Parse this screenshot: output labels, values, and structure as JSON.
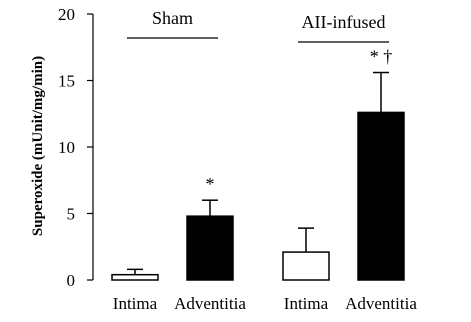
{
  "chart_data": {
    "type": "bar",
    "ylabel": "Superoxide (mUnit/mg/min)",
    "ylim": [
      0,
      20
    ],
    "yticks": [
      0,
      5,
      10,
      15,
      20
    ],
    "categories": [
      "Intima",
      "Adventitia",
      "Intima",
      "Adventitia"
    ],
    "groups": [
      {
        "label": "Sham",
        "members": [
          0,
          1
        ]
      },
      {
        "label": "AII-infused",
        "members": [
          2,
          3
        ]
      }
    ],
    "values": [
      0.4,
      4.8,
      2.1,
      12.6
    ],
    "errors": [
      0.4,
      1.2,
      1.8,
      3.0
    ],
    "fills": [
      "#ffffff",
      "#000000",
      "#ffffff",
      "#000000"
    ],
    "annotations": [
      "",
      "*",
      "",
      "* †"
    ],
    "grid": false
  }
}
